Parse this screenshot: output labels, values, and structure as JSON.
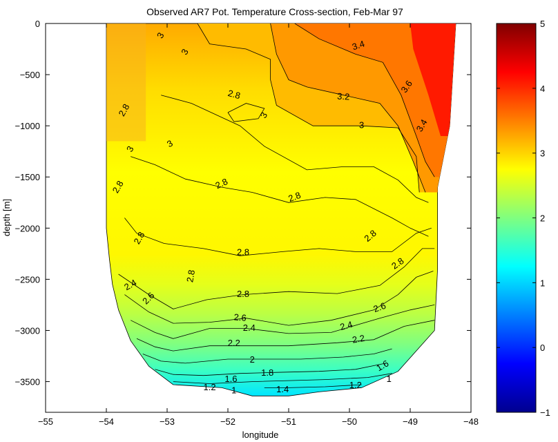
{
  "chart_data": {
    "type": "heatmap",
    "subtype": "filled-contour",
    "title": "Observed AR7 Pot. Temperature Cross-section, Feb-Mar 97",
    "xlabel": "longitude",
    "ylabel": "depth [m]",
    "xlim": [
      -55,
      -48
    ],
    "ylim": [
      -3800,
      0
    ],
    "x_ticks": [
      -55,
      -54,
      -53,
      -52,
      -51,
      -50,
      -49,
      -48
    ],
    "y_ticks": [
      0,
      -500,
      -1000,
      -1500,
      -2000,
      -2500,
      -3000,
      -3500
    ],
    "colorbar": {
      "range": [
        -1,
        5
      ],
      "ticks": [
        -1,
        0,
        1,
        2,
        3,
        4,
        5
      ],
      "colormap": "jet"
    },
    "grid": false,
    "section_boundary": [
      [
        -54.0,
        0
      ],
      [
        -54.0,
        -2000
      ],
      [
        -53.95,
        -2300
      ],
      [
        -53.9,
        -2550
      ],
      [
        -53.8,
        -2800
      ],
      [
        -53.6,
        -3100
      ],
      [
        -53.3,
        -3350
      ],
      [
        -52.9,
        -3530
      ],
      [
        -52.1,
        -3560
      ],
      [
        -51.6,
        -3640
      ],
      [
        -51.0,
        -3640
      ],
      [
        -50.5,
        -3600
      ],
      [
        -49.8,
        -3560
      ],
      [
        -49.2,
        -3400
      ],
      [
        -48.6,
        -3000
      ],
      [
        -48.55,
        -2400
      ],
      [
        -48.55,
        -1600
      ],
      [
        -48.35,
        -1000
      ],
      [
        -48.3,
        -500
      ],
      [
        -48.25,
        0
      ]
    ],
    "contours": [
      {
        "level": 3.4,
        "points": [
          [
            -50.9,
            0
          ],
          [
            -50.5,
            -150
          ],
          [
            -49.9,
            -300
          ],
          [
            -49.45,
            -380
          ],
          [
            -49.15,
            -700
          ],
          [
            -48.9,
            -1100
          ],
          [
            -48.75,
            -1350
          ],
          [
            -48.6,
            -1500
          ]
        ]
      },
      {
        "level": 3.2,
        "points": [
          [
            -51.3,
            0
          ],
          [
            -51.2,
            -300
          ],
          [
            -51.0,
            -550
          ],
          [
            -50.7,
            -620
          ],
          [
            -50.1,
            -700
          ],
          [
            -49.5,
            -780
          ],
          [
            -49.2,
            -1000
          ],
          [
            -48.95,
            -1350
          ],
          [
            -48.75,
            -1650
          ]
        ]
      },
      {
        "level": 3.0,
        "points": [
          [
            -52.5,
            0
          ],
          [
            -52.3,
            -200
          ],
          [
            -51.7,
            -250
          ],
          [
            -51.3,
            -350
          ],
          [
            -51.3,
            -550
          ],
          [
            -51.2,
            -800
          ],
          [
            -50.6,
            -1000
          ],
          [
            -49.8,
            -1000
          ],
          [
            -49.2,
            -1020
          ],
          [
            -48.9,
            -1300
          ],
          [
            -48.85,
            -1650
          ]
        ]
      },
      {
        "level": 2.8,
        "points": [
          [
            -53.1,
            -700
          ],
          [
            -52.6,
            -780
          ],
          [
            -51.8,
            -1000
          ],
          [
            -51.4,
            -1200
          ],
          [
            -50.7,
            -1430
          ],
          [
            -50.1,
            -1400
          ],
          [
            -49.6,
            -1400
          ],
          [
            -49.2,
            -1530
          ],
          [
            -48.9,
            -1700
          ],
          [
            -48.7,
            -1750
          ]
        ]
      },
      {
        "level": 2.8,
        "points": [
          [
            -53.6,
            -1300
          ],
          [
            -53.2,
            -1380
          ],
          [
            -52.7,
            -1520
          ],
          [
            -52.1,
            -1600
          ],
          [
            -51.6,
            -1650
          ],
          [
            -51.0,
            -1750
          ],
          [
            -50.4,
            -1700
          ],
          [
            -49.9,
            -1720
          ],
          [
            -49.3,
            -1900
          ],
          [
            -49.0,
            -2000
          ],
          [
            -48.7,
            -2080
          ]
        ]
      },
      {
        "level": 2.8,
        "points": [
          [
            -53.7,
            -1900
          ],
          [
            -53.5,
            -2050
          ],
          [
            -53.05,
            -2150
          ],
          [
            -52.4,
            -2200
          ],
          [
            -51.8,
            -2270
          ],
          [
            -51.1,
            -2230
          ],
          [
            -50.5,
            -2200
          ],
          [
            -49.9,
            -2230
          ],
          [
            -49.3,
            -2230
          ],
          [
            -48.9,
            -2050
          ],
          [
            -48.65,
            -2000
          ]
        ]
      },
      {
        "level": 2.8,
        "points": [
          [
            -53.8,
            -2450
          ],
          [
            -53.3,
            -2650
          ],
          [
            -52.9,
            -2790
          ],
          [
            -52.35,
            -2700
          ],
          [
            -51.75,
            -2650
          ],
          [
            -51.0,
            -2620
          ],
          [
            -50.2,
            -2640
          ],
          [
            -49.5,
            -2560
          ],
          [
            -49.1,
            -2380
          ],
          [
            -48.8,
            -2200
          ],
          [
            -48.6,
            -2200
          ]
        ]
      },
      {
        "level": 2.6,
        "points": [
          [
            -53.7,
            -2650
          ],
          [
            -53.3,
            -2820
          ],
          [
            -52.9,
            -2930
          ],
          [
            -52.3,
            -2920
          ],
          [
            -51.7,
            -2880
          ],
          [
            -51.0,
            -2950
          ],
          [
            -50.3,
            -2900
          ],
          [
            -49.6,
            -2800
          ],
          [
            -49.2,
            -2650
          ],
          [
            -48.9,
            -2480
          ],
          [
            -48.62,
            -2420
          ]
        ]
      },
      {
        "level": 2.4,
        "points": [
          [
            -53.6,
            -2900
          ],
          [
            -53.2,
            -3020
          ],
          [
            -52.9,
            -3080
          ],
          [
            -52.3,
            -2980
          ],
          [
            -51.7,
            -2980
          ],
          [
            -51.0,
            -3030
          ],
          [
            -50.3,
            -3020
          ],
          [
            -49.5,
            -2880
          ],
          [
            -49.0,
            -2800
          ],
          [
            -48.6,
            -2750
          ]
        ]
      },
      {
        "level": 2.2,
        "points": [
          [
            -53.5,
            -3080
          ],
          [
            -53.2,
            -3160
          ],
          [
            -52.9,
            -3200
          ],
          [
            -52.3,
            -3150
          ],
          [
            -51.7,
            -3150
          ],
          [
            -51.0,
            -3150
          ],
          [
            -50.2,
            -3120
          ],
          [
            -49.6,
            -3090
          ],
          [
            -49.1,
            -2960
          ],
          [
            -48.6,
            -2900
          ]
        ]
      },
      {
        "level": 2.0,
        "points": [
          [
            -53.4,
            -3230
          ],
          [
            -53.1,
            -3300
          ],
          [
            -52.7,
            -3320
          ],
          [
            -52.0,
            -3280
          ],
          [
            -51.4,
            -3280
          ],
          [
            -50.8,
            -3280
          ],
          [
            -50.1,
            -3260
          ],
          [
            -49.6,
            -3230
          ],
          [
            -49.3,
            -3180
          ]
        ]
      },
      {
        "level": 1.8,
        "points": [
          [
            -53.2,
            -3380
          ],
          [
            -52.9,
            -3430
          ],
          [
            -52.4,
            -3440
          ],
          [
            -51.8,
            -3420
          ],
          [
            -51.2,
            -3410
          ],
          [
            -50.5,
            -3400
          ],
          [
            -49.9,
            -3380
          ],
          [
            -49.4,
            -3320
          ]
        ]
      },
      {
        "level": 1.6,
        "points": [
          [
            -52.9,
            -3500
          ],
          [
            -52.3,
            -3520
          ],
          [
            -51.6,
            -3500
          ],
          [
            -51.0,
            -3490
          ],
          [
            -50.4,
            -3480
          ],
          [
            -49.7,
            -3460
          ],
          [
            -49.3,
            -3420
          ]
        ]
      },
      {
        "level": 1.4,
        "points": [
          [
            -51.4,
            -3560
          ],
          [
            -51.0,
            -3560
          ],
          [
            -50.4,
            -3550
          ],
          [
            -49.8,
            -3530
          ]
        ]
      },
      {
        "level": 3.0,
        "points": [
          [
            -52.0,
            -870
          ],
          [
            -51.7,
            -780
          ],
          [
            -51.4,
            -830
          ],
          [
            -51.5,
            -930
          ],
          [
            -51.9,
            -960
          ],
          [
            -52.0,
            -870
          ]
        ]
      }
    ],
    "contour_labels": [
      {
        "text": "3.4",
        "x": -49.85,
        "y": -220,
        "angle": 18
      },
      {
        "text": "3.2",
        "x": -50.1,
        "y": -720,
        "angle": -3
      },
      {
        "text": "3.6",
        "x": -49.05,
        "y": -620,
        "angle": 55
      },
      {
        "text": "3.4",
        "x": -48.8,
        "y": -1000,
        "angle": 60
      },
      {
        "text": "3",
        "x": -49.8,
        "y": -1000,
        "angle": 0
      },
      {
        "text": "3",
        "x": -52.7,
        "y": -280,
        "angle": 60
      },
      {
        "text": "3",
        "x": -53.1,
        "y": -120,
        "angle": 60
      },
      {
        "text": "3",
        "x": -51.4,
        "y": -900,
        "angle": 60
      },
      {
        "text": "3",
        "x": -53.6,
        "y": -1230,
        "angle": 60
      },
      {
        "text": "3",
        "x": -52.95,
        "y": -1180,
        "angle": 30
      },
      {
        "text": "2.8",
        "x": -51.9,
        "y": -700,
        "angle": -15
      },
      {
        "text": "2.8",
        "x": -53.7,
        "y": -850,
        "angle": 60
      },
      {
        "text": "2.8",
        "x": -52.1,
        "y": -1570,
        "angle": 25
      },
      {
        "text": "2.8",
        "x": -50.9,
        "y": -1700,
        "angle": 20
      },
      {
        "text": "2.8",
        "x": -53.8,
        "y": -1600,
        "angle": 60
      },
      {
        "text": "2.8",
        "x": -53.45,
        "y": -2100,
        "angle": 60
      },
      {
        "text": "2.8",
        "x": -51.75,
        "y": -2240,
        "angle": 0
      },
      {
        "text": "2.8",
        "x": -49.65,
        "y": -2080,
        "angle": 40
      },
      {
        "text": "2.8",
        "x": -49.2,
        "y": -2350,
        "angle": 35
      },
      {
        "text": "2.8",
        "x": -52.6,
        "y": -2470,
        "angle": 80
      },
      {
        "text": "2.8",
        "x": -51.75,
        "y": -2650,
        "angle": 0
      },
      {
        "text": "2.6",
        "x": -49.5,
        "y": -2780,
        "angle": 20
      },
      {
        "text": "2.6",
        "x": -51.8,
        "y": -2880,
        "angle": -5
      },
      {
        "text": "2.6",
        "x": -53.3,
        "y": -2690,
        "angle": 45
      },
      {
        "text": "2.4",
        "x": -51.65,
        "y": -2980,
        "angle": 0
      },
      {
        "text": "2.4",
        "x": -50.05,
        "y": -2960,
        "angle": 15
      },
      {
        "text": "2.4",
        "x": -53.6,
        "y": -2560,
        "angle": 30
      },
      {
        "text": "2.2",
        "x": -51.9,
        "y": -3130,
        "angle": 0
      },
      {
        "text": "2.2",
        "x": -49.85,
        "y": -3090,
        "angle": 10
      },
      {
        "text": "2",
        "x": -51.6,
        "y": -3290,
        "angle": 0
      },
      {
        "text": "1.8",
        "x": -51.35,
        "y": -3420,
        "angle": 0
      },
      {
        "text": "1.6",
        "x": -51.95,
        "y": -3480,
        "angle": 0
      },
      {
        "text": "1.6",
        "x": -49.45,
        "y": -3350,
        "angle": 30
      },
      {
        "text": "1.4",
        "x": -51.1,
        "y": -3580,
        "angle": 0
      },
      {
        "text": "1.2",
        "x": -52.3,
        "y": -3560,
        "angle": 0
      },
      {
        "text": "1.2",
        "x": -49.9,
        "y": -3540,
        "angle": 0
      },
      {
        "text": "1",
        "x": -51.9,
        "y": -3590,
        "angle": 0
      },
      {
        "text": "1",
        "x": -49.35,
        "y": -3480,
        "angle": 0
      }
    ],
    "color_legend_labels": [
      "-1",
      "0",
      "1",
      "2",
      "3",
      "4",
      "5"
    ]
  }
}
